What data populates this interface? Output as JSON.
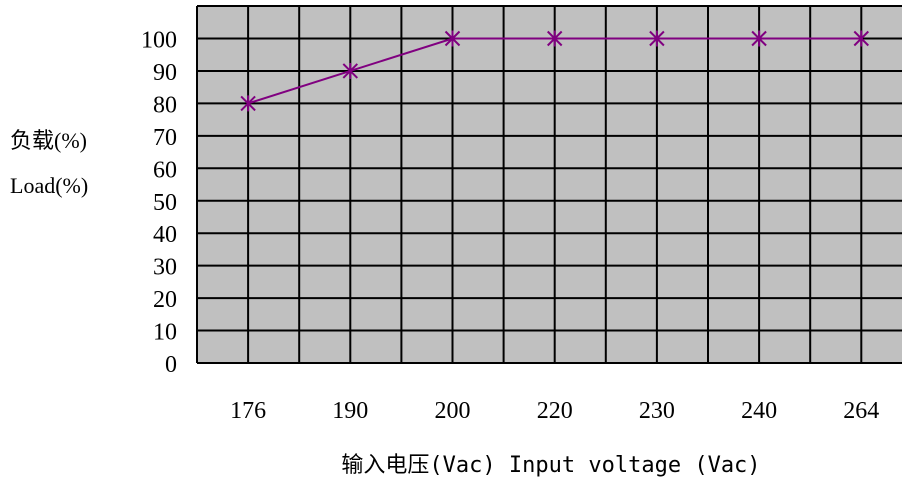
{
  "chart_data": {
    "type": "line",
    "categories": [
      "176",
      "190",
      "200",
      "220",
      "230",
      "240",
      "264"
    ],
    "series": [
      {
        "values": [
          80,
          90,
          100,
          100,
          100,
          100,
          100
        ]
      }
    ],
    "ylabel_lines": [
      "负载(%)",
      "Load(%)"
    ],
    "xlabel": "输入电压(Vac) Input voltage (Vac)",
    "yticks": [
      "0",
      "10",
      "20",
      "30",
      "40",
      "50",
      "60",
      "70",
      "80",
      "90",
      "100"
    ],
    "ylim": [
      0,
      100
    ],
    "grid": true,
    "colors": {
      "plot_bg": "#c0c0c0",
      "grid": "#000000",
      "line": "#800080"
    }
  }
}
